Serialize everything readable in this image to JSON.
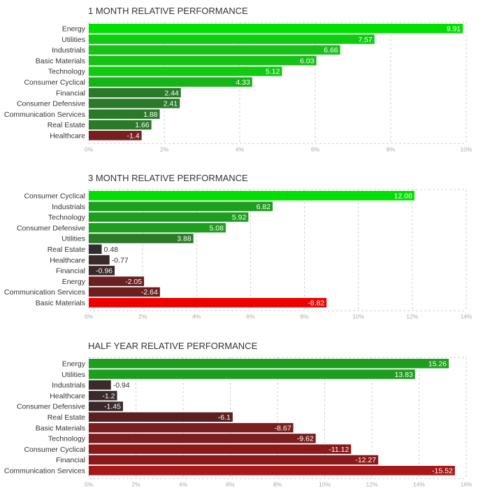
{
  "chart_data": [
    {
      "type": "bar",
      "orientation": "horizontal",
      "title": "1 MONTH RELATIVE PERFORMANCE",
      "categories": [
        "Energy",
        "Utilities",
        "Industrials",
        "Basic Materials",
        "Technology",
        "Consumer Cyclical",
        "Financial",
        "Consumer Defensive",
        "Communication Services",
        "Real Estate",
        "Healthcare"
      ],
      "values": [
        9.91,
        7.57,
        6.66,
        6.03,
        5.12,
        4.33,
        2.44,
        2.41,
        1.88,
        1.66,
        -1.4
      ],
      "value_labels": [
        "9.91",
        "7.57",
        "6.66",
        "6.03",
        "5.12",
        "4.33",
        "2.44",
        "2.41",
        "1.88",
        "1.66",
        "-1.4"
      ],
      "colors": [
        "#00e000",
        "#10cc10",
        "#18c018",
        "#18c018",
        "#10cc10",
        "#16b516",
        "#2a7a2a",
        "#2a7a2a",
        "#2a7a2a",
        "#2a7a2a",
        "#7a1f1f"
      ],
      "ticks": [
        0,
        2,
        4,
        6,
        8,
        10
      ],
      "tick_labels": [
        "0%",
        "2%",
        "4%",
        "6%",
        "8%",
        "10%"
      ],
      "xlim": [
        0,
        10
      ],
      "xlabel": "",
      "ylabel": ""
    },
    {
      "type": "bar",
      "orientation": "horizontal",
      "title": "3 MONTH RELATIVE PERFORMANCE",
      "categories": [
        "Consumer Cyclical",
        "Industrials",
        "Technology",
        "Consumer Defensive",
        "Utilities",
        "Real Estate",
        "Healthcare",
        "Financial",
        "Energy",
        "Communication Services",
        "Basic Materials"
      ],
      "values": [
        12.08,
        6.82,
        5.92,
        5.08,
        3.88,
        0.48,
        -0.77,
        -0.96,
        -2.05,
        -2.64,
        -8.82
      ],
      "value_labels": [
        "12.08",
        "6.82",
        "5.92",
        "5.08",
        "3.88",
        "0.48",
        "-0.77",
        "-0.96",
        "-2.05",
        "-2.64",
        "-8.82"
      ],
      "colors": [
        "#00e000",
        "#1e9e1e",
        "#1e9e1e",
        "#1e9e1e",
        "#2a7a2a",
        "#2e2e2e",
        "#3a2a2a",
        "#3a2a2a",
        "#6b1f1f",
        "#6b1f1f",
        "#ee0000"
      ],
      "ticks": [
        0,
        2,
        4,
        6,
        8,
        10,
        12,
        14
      ],
      "tick_labels": [
        "0%",
        "2%",
        "4%",
        "6%",
        "8%",
        "10%",
        "12%",
        "14%"
      ],
      "xlim": [
        0,
        14
      ],
      "xlabel": "",
      "ylabel": ""
    },
    {
      "type": "bar",
      "orientation": "horizontal",
      "title": "HALF YEAR RELATIVE PERFORMANCE",
      "categories": [
        "Energy",
        "Utilities",
        "Industrials",
        "Healthcare",
        "Consumer Defensive",
        "Real Estate",
        "Basic Materials",
        "Technology",
        "Consumer Cyclical",
        "Financial",
        "Communication Services"
      ],
      "values": [
        15.26,
        13.83,
        -0.94,
        -1.2,
        -1.45,
        -6.1,
        -8.67,
        -9.62,
        -11.12,
        -12.27,
        -15.52
      ],
      "value_labels": [
        "15.26",
        "13.83",
        "-0.94",
        "-1.2",
        "-1.45",
        "-6.1",
        "-8.67",
        "-9.62",
        "-11.12",
        "-12.27",
        "-15.52"
      ],
      "colors": [
        "#1e9e1e",
        "#1e9e1e",
        "#3a2a2a",
        "#3a2a2a",
        "#3a2a2a",
        "#5a2020",
        "#7a1f1f",
        "#7a1f1f",
        "#8a1a1a",
        "#8a1a1a",
        "#a81818"
      ],
      "ticks": [
        0,
        2,
        4,
        6,
        8,
        10,
        12,
        14,
        16
      ],
      "tick_labels": [
        "0%",
        "2%",
        "4%",
        "6%",
        "8%",
        "10%",
        "12%",
        "14%",
        "16%"
      ],
      "xlim": [
        0,
        16
      ],
      "xlabel": "",
      "ylabel": ""
    }
  ]
}
